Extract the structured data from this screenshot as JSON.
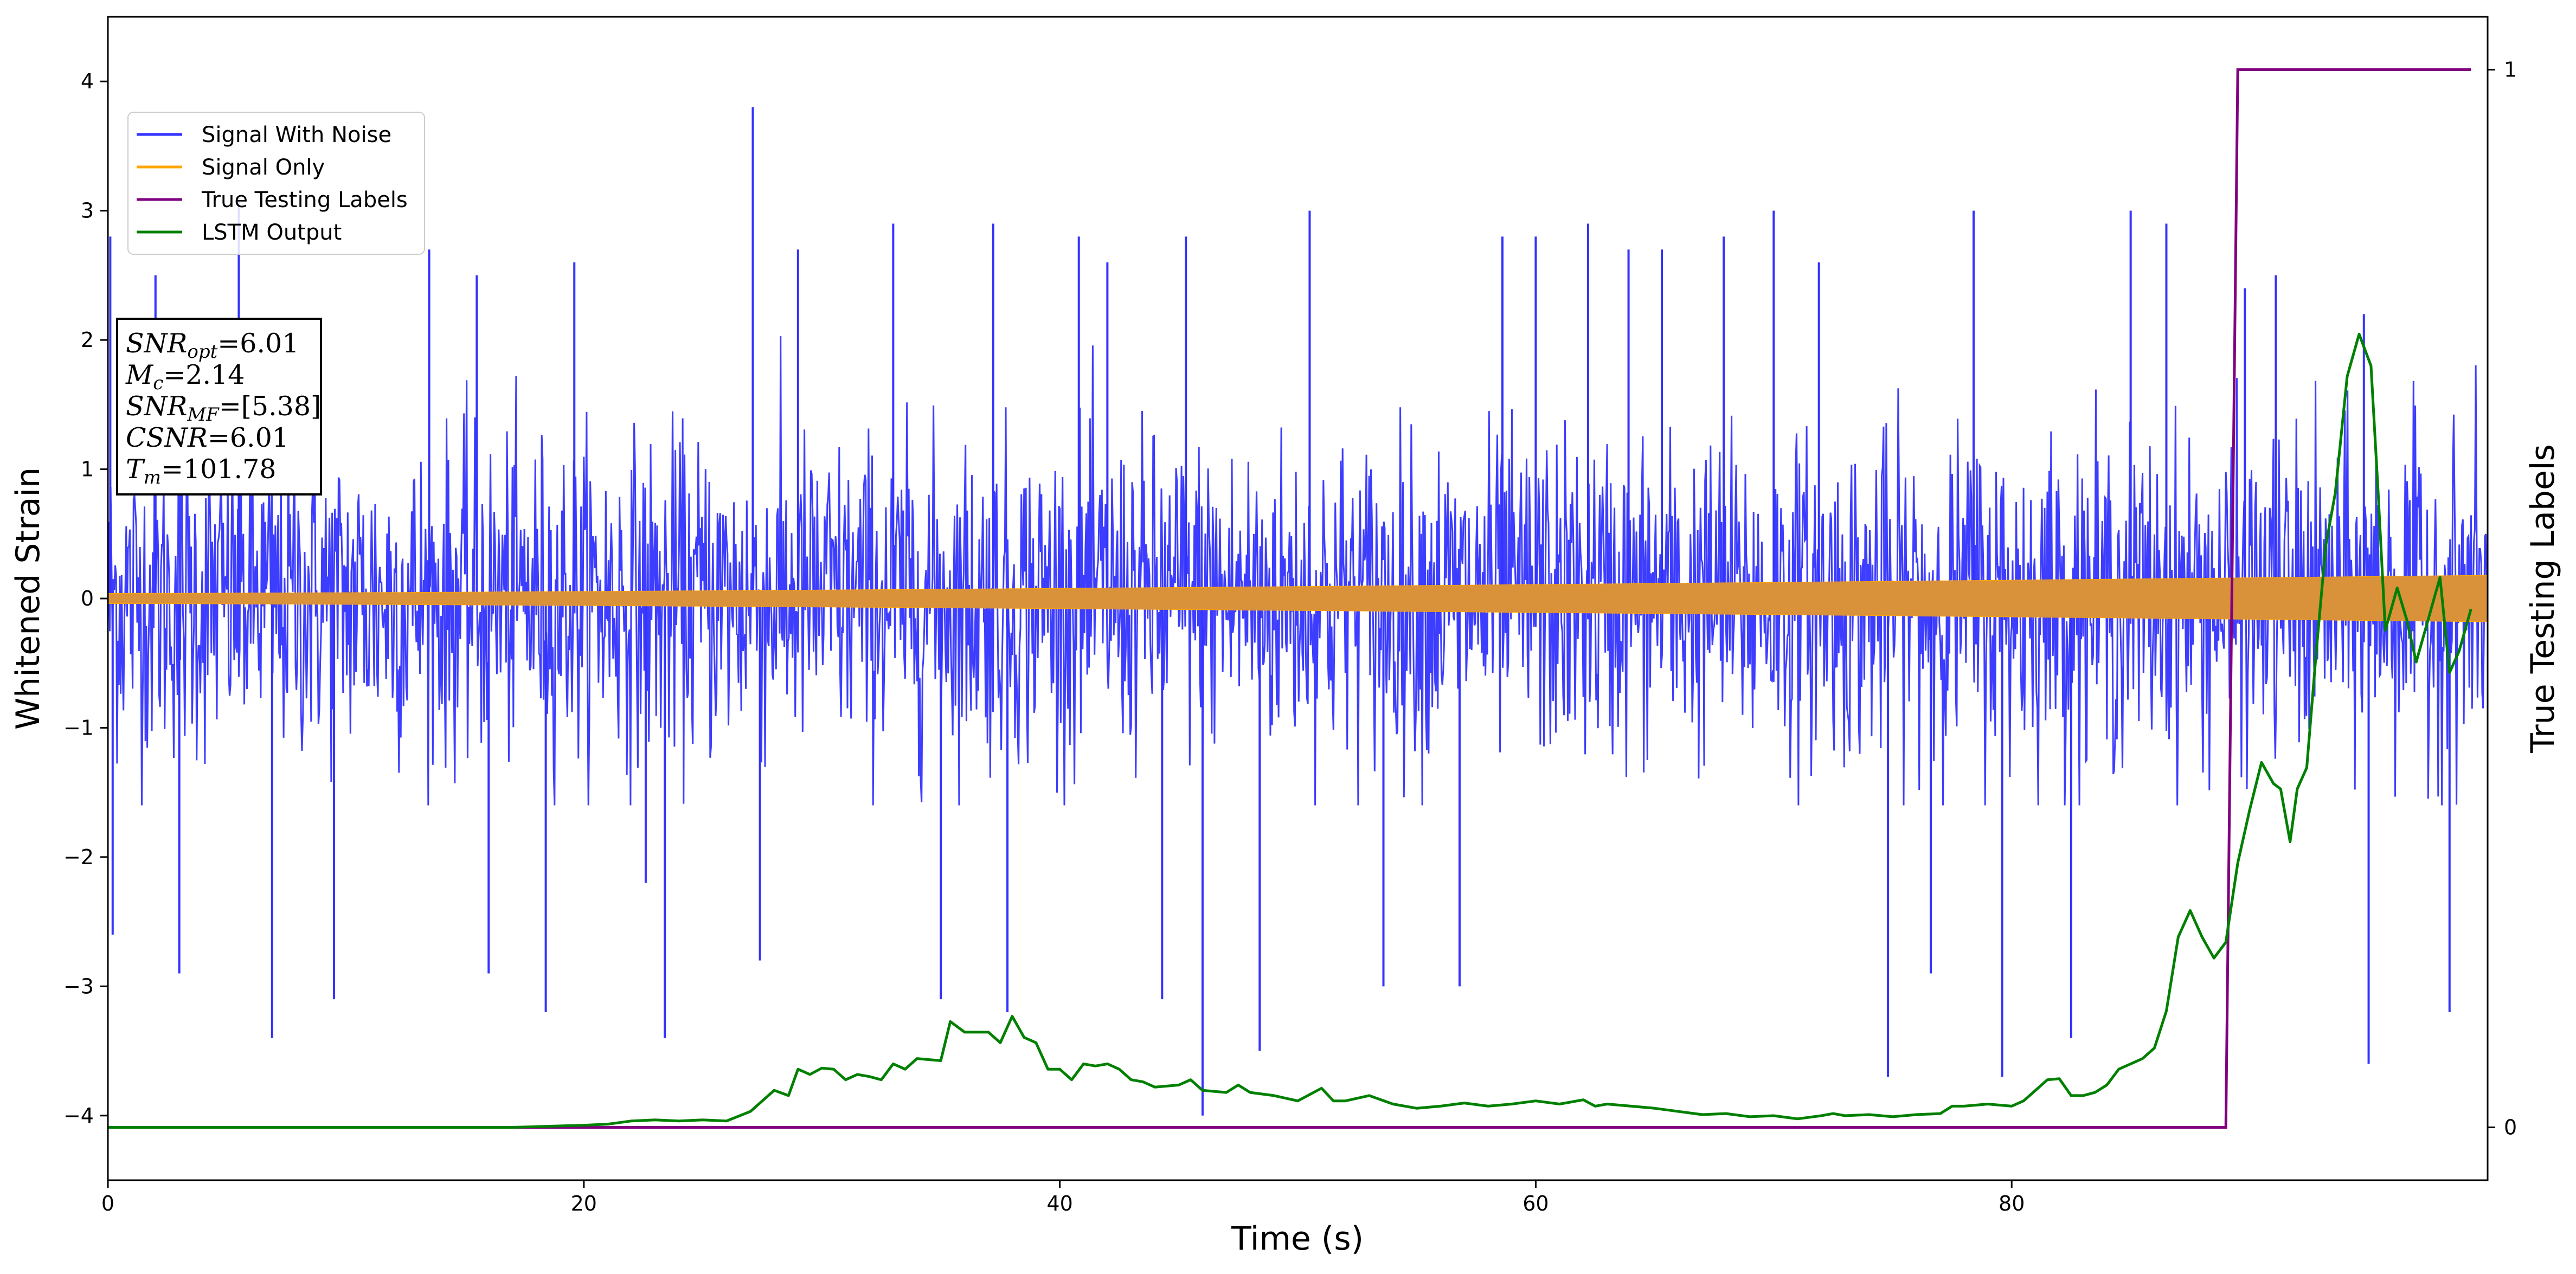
{
  "chart_data": {
    "type": "line",
    "xlabel": "Time (s)",
    "ylabel": "Whitened Strain",
    "y2label": "True Testing Labels",
    "xlim": [
      0,
      100
    ],
    "ylim": [
      -4.5,
      4.5
    ],
    "y2lim": [
      -0.05,
      1.05
    ],
    "xticks": [
      0,
      20,
      40,
      60,
      80
    ],
    "yticks": [
      -4,
      -3,
      -2,
      -1,
      0,
      1,
      2,
      3,
      4
    ],
    "y2ticks": [
      0,
      1
    ],
    "grid": false,
    "legend_position": "upper-left",
    "series": [
      {
        "name": "Signal With Noise",
        "axis": "left",
        "color": "#3333ff",
        "style": "dense-noise",
        "typical_range": [
          -1.6,
          2.3
        ],
        "notable_spikes": [
          {
            "x": 0.1,
            "y": 2.8
          },
          {
            "x": 0.2,
            "y": -2.6
          },
          {
            "x": 2.0,
            "y": 2.5
          },
          {
            "x": 3.0,
            "y": -2.9
          },
          {
            "x": 5.5,
            "y": 3.1
          },
          {
            "x": 6.9,
            "y": -3.4
          },
          {
            "x": 9.5,
            "y": -3.1
          },
          {
            "x": 13.5,
            "y": 2.7
          },
          {
            "x": 15.5,
            "y": 2.5
          },
          {
            "x": 16.0,
            "y": -2.9
          },
          {
            "x": 18.4,
            "y": -3.2
          },
          {
            "x": 19.6,
            "y": 2.6
          },
          {
            "x": 22.6,
            "y": -2.2
          },
          {
            "x": 23.4,
            "y": -3.4
          },
          {
            "x": 27.1,
            "y": 3.8
          },
          {
            "x": 27.4,
            "y": -2.8
          },
          {
            "x": 29.0,
            "y": 2.7
          },
          {
            "x": 33.0,
            "y": 2.9
          },
          {
            "x": 35.0,
            "y": -3.1
          },
          {
            "x": 37.2,
            "y": 2.9
          },
          {
            "x": 37.8,
            "y": -3.2
          },
          {
            "x": 40.8,
            "y": 2.8
          },
          {
            "x": 42.0,
            "y": 2.6
          },
          {
            "x": 44.3,
            "y": -3.1
          },
          {
            "x": 45.3,
            "y": 2.8
          },
          {
            "x": 46.0,
            "y": -4.0
          },
          {
            "x": 48.4,
            "y": -3.5
          },
          {
            "x": 50.5,
            "y": 3.0
          },
          {
            "x": 53.6,
            "y": -3.0
          },
          {
            "x": 56.8,
            "y": -3.0
          },
          {
            "x": 58.6,
            "y": 2.8
          },
          {
            "x": 60.0,
            "y": 2.8
          },
          {
            "x": 62.2,
            "y": 2.9
          },
          {
            "x": 63.9,
            "y": 2.7
          },
          {
            "x": 65.3,
            "y": 2.7
          },
          {
            "x": 67.9,
            "y": 2.8
          },
          {
            "x": 70.0,
            "y": 3.0
          },
          {
            "x": 71.9,
            "y": 2.6
          },
          {
            "x": 74.8,
            "y": -3.7
          },
          {
            "x": 76.6,
            "y": -2.9
          },
          {
            "x": 78.4,
            "y": 3.0
          },
          {
            "x": 79.6,
            "y": -3.7
          },
          {
            "x": 82.5,
            "y": -3.4
          },
          {
            "x": 85.0,
            "y": 3.0
          },
          {
            "x": 86.5,
            "y": 2.9
          },
          {
            "x": 89.8,
            "y": 2.4
          },
          {
            "x": 91.1,
            "y": 2.5
          },
          {
            "x": 94.8,
            "y": 2.2
          },
          {
            "x": 95.0,
            "y": -3.6
          },
          {
            "x": 98.4,
            "y": -3.2
          }
        ]
      },
      {
        "name": "Signal Only",
        "axis": "left",
        "color": "#ffa500",
        "style": "oscillating-envelope",
        "envelope_start": 0.04,
        "envelope_end": 0.18
      },
      {
        "name": "True Testing Labels",
        "axis": "right",
        "color": "#800080",
        "points": [
          [
            0,
            0
          ],
          [
            89.0,
            0
          ],
          [
            89.5,
            1
          ],
          [
            99.3,
            1
          ]
        ]
      },
      {
        "name": "LSTM Output",
        "axis": "right",
        "color": "#008000",
        "points": [
          [
            0,
            0
          ],
          [
            10,
            0
          ],
          [
            17,
            0.0
          ],
          [
            20,
            0.002
          ],
          [
            21,
            0.003
          ],
          [
            22,
            0.006
          ],
          [
            23,
            0.007
          ],
          [
            24,
            0.006
          ],
          [
            25,
            0.007
          ],
          [
            26,
            0.006
          ],
          [
            27,
            0.015
          ],
          [
            28,
            0.035
          ],
          [
            28.6,
            0.03
          ],
          [
            29,
            0.055
          ],
          [
            29.5,
            0.05
          ],
          [
            30,
            0.056
          ],
          [
            30.5,
            0.055
          ],
          [
            31,
            0.045
          ],
          [
            31.5,
            0.05
          ],
          [
            32,
            0.048
          ],
          [
            32.5,
            0.045
          ],
          [
            33,
            0.06
          ],
          [
            33.5,
            0.055
          ],
          [
            34,
            0.065
          ],
          [
            35,
            0.063
          ],
          [
            35.4,
            0.1
          ],
          [
            36,
            0.09
          ],
          [
            37,
            0.09
          ],
          [
            37.5,
            0.08
          ],
          [
            38,
            0.105
          ],
          [
            38.5,
            0.085
          ],
          [
            39,
            0.08
          ],
          [
            39.5,
            0.055
          ],
          [
            40,
            0.055
          ],
          [
            40.5,
            0.045
          ],
          [
            41,
            0.06
          ],
          [
            41.5,
            0.058
          ],
          [
            42,
            0.06
          ],
          [
            42.5,
            0.055
          ],
          [
            43,
            0.045
          ],
          [
            43.5,
            0.043
          ],
          [
            44,
            0.038
          ],
          [
            45,
            0.04
          ],
          [
            45.5,
            0.045
          ],
          [
            46,
            0.035
          ],
          [
            47,
            0.033
          ],
          [
            47.5,
            0.04
          ],
          [
            48,
            0.033
          ],
          [
            49,
            0.03
          ],
          [
            50,
            0.025
          ],
          [
            51,
            0.037
          ],
          [
            51.5,
            0.025
          ],
          [
            52,
            0.025
          ],
          [
            53,
            0.03
          ],
          [
            54,
            0.022
          ],
          [
            55,
            0.018
          ],
          [
            56,
            0.02
          ],
          [
            57,
            0.023
          ],
          [
            58,
            0.02
          ],
          [
            59,
            0.022
          ],
          [
            60,
            0.025
          ],
          [
            61,
            0.022
          ],
          [
            62,
            0.026
          ],
          [
            62.5,
            0.02
          ],
          [
            63,
            0.022
          ],
          [
            64,
            0.02
          ],
          [
            65,
            0.018
          ],
          [
            66,
            0.015
          ],
          [
            67,
            0.012
          ],
          [
            68,
            0.013
          ],
          [
            69,
            0.01
          ],
          [
            70,
            0.011
          ],
          [
            71,
            0.008
          ],
          [
            72,
            0.011
          ],
          [
            72.5,
            0.013
          ],
          [
            73,
            0.011
          ],
          [
            74,
            0.012
          ],
          [
            75,
            0.01
          ],
          [
            76,
            0.012
          ],
          [
            77,
            0.013
          ],
          [
            77.5,
            0.02
          ],
          [
            78,
            0.02
          ],
          [
            79,
            0.022
          ],
          [
            80,
            0.02
          ],
          [
            80.5,
            0.025
          ],
          [
            81,
            0.035
          ],
          [
            81.5,
            0.045
          ],
          [
            82,
            0.046
          ],
          [
            82.5,
            0.03
          ],
          [
            83,
            0.03
          ],
          [
            83.5,
            0.033
          ],
          [
            84,
            0.04
          ],
          [
            84.5,
            0.055
          ],
          [
            85,
            0.06
          ],
          [
            85.5,
            0.065
          ],
          [
            86,
            0.075
          ],
          [
            86.5,
            0.11
          ],
          [
            87,
            0.18
          ],
          [
            87.5,
            0.205
          ],
          [
            88,
            0.18
          ],
          [
            88.5,
            0.16
          ],
          [
            89,
            0.175
          ],
          [
            89.5,
            0.25
          ],
          [
            90,
            0.3
          ],
          [
            90.5,
            0.345
          ],
          [
            91,
            0.325
          ],
          [
            91.3,
            0.32
          ],
          [
            91.7,
            0.27
          ],
          [
            92,
            0.32
          ],
          [
            92.4,
            0.34
          ],
          [
            92.8,
            0.45
          ],
          [
            93.2,
            0.55
          ],
          [
            93.6,
            0.6
          ],
          [
            94.1,
            0.71
          ],
          [
            94.6,
            0.75
          ],
          [
            95.1,
            0.72
          ],
          [
            95.4,
            0.6
          ],
          [
            95.7,
            0.47
          ],
          [
            96.2,
            0.51
          ],
          [
            96.6,
            0.48
          ],
          [
            97.0,
            0.44
          ],
          [
            97.5,
            0.48
          ],
          [
            98.0,
            0.52
          ],
          [
            98.4,
            0.43
          ],
          [
            98.8,
            0.45
          ],
          [
            99.3,
            0.49
          ]
        ]
      }
    ],
    "annotation": [
      {
        "base": "SNR",
        "sub": "opt",
        "value": "=6.01"
      },
      {
        "base": "M",
        "sub": "c",
        "value": "=2.14"
      },
      {
        "base": "SNR",
        "sub": "MF",
        "value": "=[5.38]"
      },
      {
        "base": "CSNR",
        "sub": "",
        "value": "=6.01"
      },
      {
        "base": "T",
        "sub": "m",
        "value": "=101.78"
      }
    ]
  }
}
